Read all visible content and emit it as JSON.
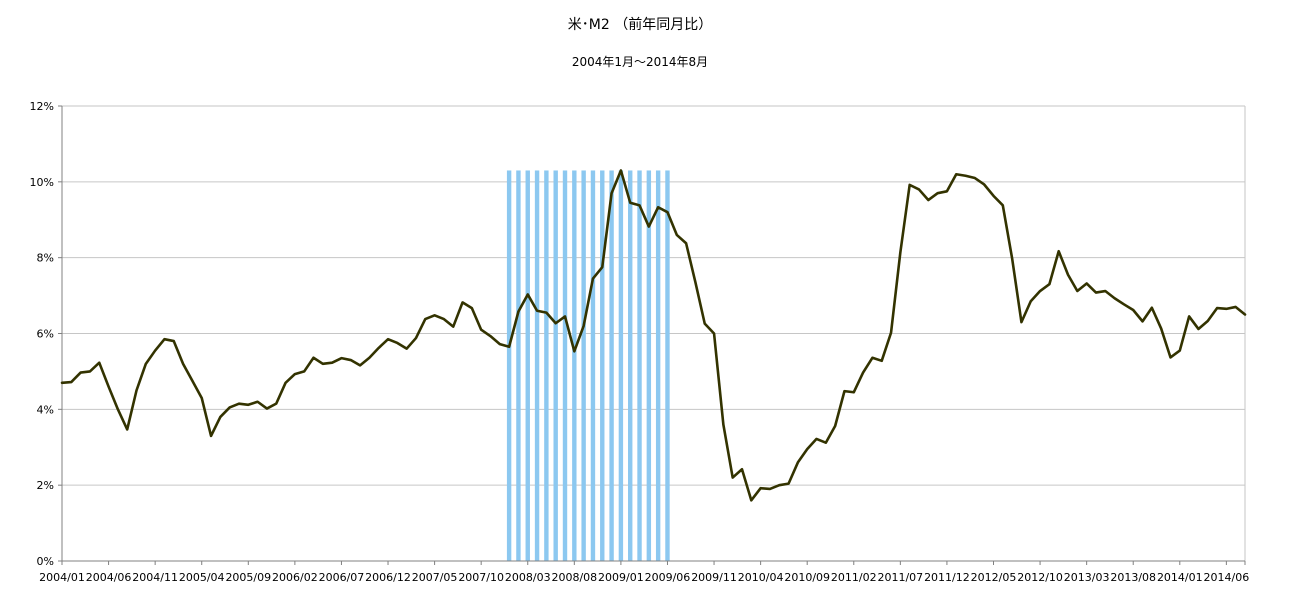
{
  "chart_data": {
    "type": "line",
    "title": "米･M2 （前年同月比）",
    "subtitle": "2004年1月～2014年8月",
    "y_unit": "%",
    "ylim": [
      0,
      12
    ],
    "y_ticks": [
      0,
      2,
      4,
      6,
      8,
      10,
      12
    ],
    "y_tick_labels": [
      "0%",
      "2%",
      "4%",
      "6%",
      "8%",
      "10%",
      "12%"
    ],
    "x_start": "2004/01",
    "x_end": "2014/08",
    "x_tick_labels": [
      "2004/01",
      "2004/06",
      "2004/11",
      "2005/04",
      "2005/09",
      "2006/02",
      "2006/07",
      "2006/12",
      "2007/05",
      "2007/10",
      "2008/03",
      "2008/08",
      "2009/01",
      "2009/06",
      "2009/11",
      "2010/04",
      "2010/09",
      "2011/02",
      "2011/07",
      "2011/12",
      "2012/05",
      "2012/10",
      "2013/03",
      "2013/08",
      "2014/01",
      "2014/06"
    ],
    "grid": "horizontal",
    "line_color": "#333300",
    "shade_color": "#8cc8f0",
    "shaded_period": {
      "start": "2008/01",
      "end": "2009/06"
    },
    "series": [
      {
        "values": [
          4.7,
          4.72,
          4.97,
          5.0,
          5.23,
          4.6,
          4.0,
          3.47,
          4.5,
          5.2,
          5.55,
          5.85,
          5.8,
          5.2,
          4.75,
          4.3,
          3.3,
          3.8,
          4.05,
          4.15,
          4.12,
          4.2,
          4.02,
          4.15,
          4.7,
          4.93,
          5.0,
          5.36,
          5.2,
          5.23,
          5.35,
          5.3,
          5.16,
          5.36,
          5.62,
          5.85,
          5.75,
          5.6,
          5.88,
          6.38,
          6.48,
          6.38,
          6.18,
          6.82,
          6.67,
          6.1,
          5.93,
          5.72,
          5.65,
          6.58,
          7.03,
          6.6,
          6.55,
          6.27,
          6.45,
          5.53,
          6.2,
          7.45,
          7.75,
          9.7,
          10.3,
          9.45,
          9.38,
          8.82,
          9.33,
          9.2,
          8.6,
          8.38,
          7.35,
          6.26,
          6.0,
          3.6,
          2.2,
          2.42,
          1.6,
          1.92,
          1.9,
          2.0,
          2.04,
          2.6,
          2.95,
          3.22,
          3.12,
          3.56,
          4.48,
          4.45,
          4.97,
          5.36,
          5.28,
          6.02,
          8.14,
          9.92,
          9.8,
          9.52,
          9.7,
          9.75,
          10.2,
          10.16,
          10.1,
          9.93,
          9.63,
          9.38,
          7.98,
          6.3,
          6.85,
          7.12,
          7.3,
          8.17,
          7.55,
          7.12,
          7.32,
          7.08,
          7.12,
          6.93,
          6.77,
          6.62,
          6.32,
          6.68,
          6.13,
          5.37,
          5.55,
          6.45,
          6.12,
          6.33,
          6.67,
          6.65,
          6.7,
          6.5
        ]
      }
    ]
  }
}
